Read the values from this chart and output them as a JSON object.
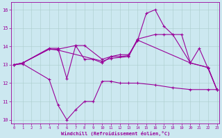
{
  "xlabel": "Windchill (Refroidissement éolien,°C)",
  "background_color": "#cce8f0",
  "line_color": "#990099",
  "series": {
    "line_top_x": [
      0,
      1,
      4,
      5,
      6,
      7,
      8,
      9,
      10,
      11,
      12,
      13,
      14,
      15,
      16,
      17,
      18,
      19,
      20,
      21,
      22,
      23
    ],
    "line_top_y": [
      13.0,
      13.1,
      13.9,
      13.9,
      12.25,
      14.05,
      13.3,
      13.3,
      13.1,
      13.45,
      13.55,
      13.55,
      14.3,
      15.8,
      16.0,
      15.1,
      14.65,
      14.65,
      13.1,
      13.9,
      12.8,
      11.65
    ],
    "line_mid2_x": [
      0,
      1,
      4,
      5,
      7,
      8,
      10,
      11,
      12,
      13,
      14,
      16,
      17,
      18,
      20,
      22,
      23
    ],
    "line_mid2_y": [
      13.0,
      13.1,
      13.85,
      13.85,
      14.05,
      14.05,
      13.3,
      13.45,
      13.45,
      13.5,
      14.4,
      14.65,
      14.65,
      14.65,
      13.1,
      12.85,
      11.65
    ],
    "line_mid1_x": [
      0,
      1,
      4,
      5,
      10,
      11,
      13,
      14,
      20,
      22,
      23
    ],
    "line_mid1_y": [
      13.0,
      13.1,
      13.85,
      13.8,
      13.2,
      13.35,
      13.45,
      14.35,
      13.1,
      12.85,
      11.65
    ],
    "line_bot_x": [
      0,
      1,
      4,
      5,
      6,
      7,
      8,
      9,
      10,
      11,
      12,
      13,
      14,
      16,
      18,
      20,
      22,
      23
    ],
    "line_bot_y": [
      13.0,
      13.05,
      12.2,
      10.8,
      10.0,
      10.55,
      11.0,
      11.0,
      12.1,
      12.1,
      12.0,
      12.0,
      12.0,
      11.9,
      11.75,
      11.65,
      11.65,
      11.65
    ]
  },
  "ylim": [
    9.8,
    16.4
  ],
  "xlim": [
    -0.3,
    23.3
  ],
  "yticks": [
    10,
    11,
    12,
    13,
    14,
    15,
    16
  ],
  "xticks": [
    0,
    1,
    2,
    3,
    4,
    5,
    6,
    7,
    8,
    9,
    10,
    11,
    12,
    13,
    14,
    15,
    16,
    17,
    18,
    19,
    20,
    21,
    22,
    23
  ]
}
